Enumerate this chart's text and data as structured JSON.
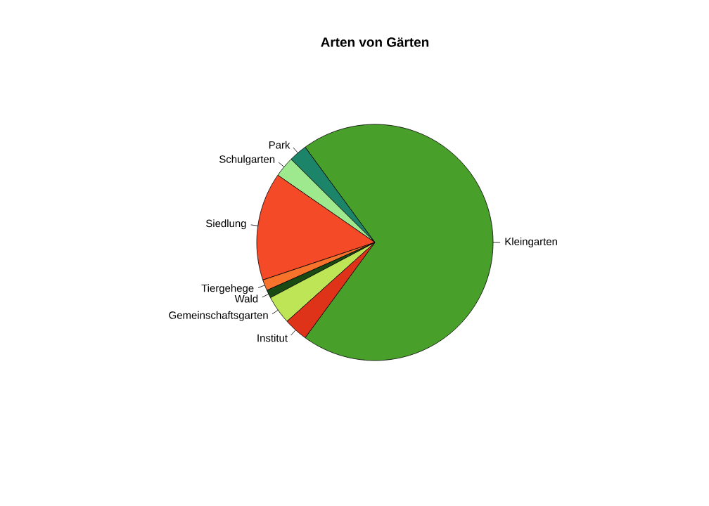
{
  "chart_data": {
    "type": "pie",
    "title": "Arten von Gärten",
    "categories": [
      "Kleingarten",
      "Park",
      "Schulgarten",
      "Siedlung",
      "Tiergehege",
      "Wald",
      "Gemeinschaftsgarten",
      "Institut"
    ],
    "values": [
      70.1,
      2.5,
      2.8,
      14.8,
      1.5,
      1.1,
      3.9,
      3.3
    ],
    "colors": [
      "#48a02a",
      "#1b8469",
      "#9ee88e",
      "#f54a28",
      "#f7722a",
      "#1a4a14",
      "#bde555",
      "#de3219"
    ]
  }
}
